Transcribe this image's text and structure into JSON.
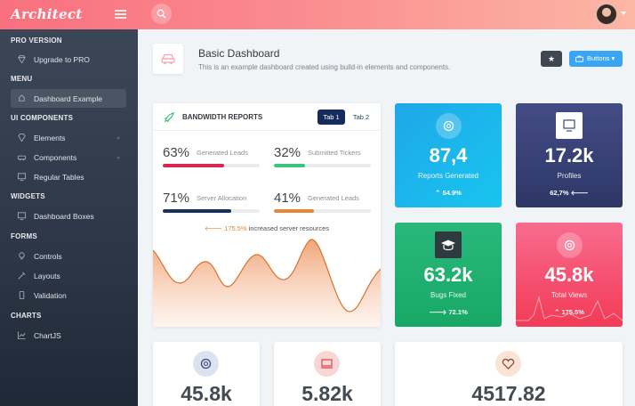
{
  "app": {
    "logo": "Architect"
  },
  "sidebar": {
    "headings": [
      "PRO VERSION",
      "MENU",
      "UI COMPONENTS",
      "WIDGETS",
      "FORMS",
      "CHARTS"
    ],
    "items": [
      {
        "label": "Upgrade to PRO",
        "icon": "gem-icon"
      },
      {
        "label": "Dashboard Example",
        "icon": "rocket-icon",
        "active": true
      },
      {
        "label": "Elements",
        "icon": "diamond-icon"
      },
      {
        "label": "Components",
        "icon": "car-icon"
      },
      {
        "label": "Regular Tables",
        "icon": "display-icon"
      },
      {
        "label": "Dashboard Boxes",
        "icon": "display-icon"
      },
      {
        "label": "Controls",
        "icon": "light-icon"
      },
      {
        "label": "Layouts",
        "icon": "eyedropper-icon"
      },
      {
        "label": "Validation",
        "icon": "pendrive-icon"
      },
      {
        "label": "ChartJS",
        "icon": "graph-icon"
      }
    ]
  },
  "page": {
    "title": "Basic Dashboard",
    "subtitle": "This is an example dashboard created using build-in elements and components.",
    "buttons_label": "Buttons"
  },
  "bandwidth": {
    "title": "BANDWIDTH REPORTS",
    "tabs": [
      "Tab 1",
      "Tab 2"
    ],
    "metrics": [
      {
        "pct": "63%",
        "label": "Generated Leads",
        "value": 63,
        "color": "#d92550"
      },
      {
        "pct": "32%",
        "label": "Submitted Tickers",
        "value": 32,
        "color": "#3ac47d"
      },
      {
        "pct": "71%",
        "label": "Server Allocation",
        "value": 71,
        "color": "#16305f"
      },
      {
        "pct": "41%",
        "label": "Generated Leads",
        "value": 41,
        "color": "#f7b924"
      }
    ],
    "note_value": "175.5%",
    "note_text": "increased server resources"
  },
  "stats": [
    {
      "value": "87,4",
      "label": "Reports Generated",
      "change": "54.9%",
      "icon": "gear-icon"
    },
    {
      "value": "17.2k",
      "label": "Profiles",
      "change": "62,7%",
      "icon": "monitor-icon"
    },
    {
      "value": "63.2k",
      "label": "Bugs Fixed",
      "change": "72.1%",
      "icon": "graduation-cap-icon"
    },
    {
      "value": "45.8k",
      "label": "Total Views",
      "change": "175.5%",
      "icon": "gear-icon"
    }
  ],
  "bottom": [
    {
      "value": "45.8k",
      "icon": "gear-icon"
    },
    {
      "value": "5.82k",
      "icon": "laptop-icon"
    },
    {
      "value": "4517.82",
      "icon": "heart-icon"
    }
  ],
  "colors": {
    "brand": "#f9707f",
    "primary": "#3aa5f3",
    "dark": "#343a40"
  }
}
